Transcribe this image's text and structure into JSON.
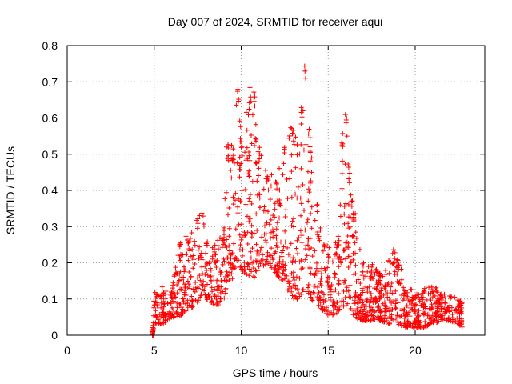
{
  "chart_data": {
    "type": "scatter",
    "title": "Day 007 of 2024, SRMTID for receiver aqui",
    "xlabel": "GPS time / hours",
    "ylabel": "SRMTID / TECUs",
    "xlim": [
      0,
      24
    ],
    "ylim": [
      0,
      0.8
    ],
    "x_ticks": [
      0,
      5,
      10,
      15,
      20
    ],
    "x_tick_labels": [
      "0",
      "5",
      "10",
      "15",
      "20"
    ],
    "y_ticks": [
      0,
      0.1,
      0.2,
      0.3,
      0.4,
      0.5,
      0.6,
      0.7,
      0.8
    ],
    "y_tick_labels": [
      "0",
      "0.1",
      "0.2",
      "0.3",
      "0.4",
      "0.5",
      "0.6",
      "0.7",
      "0.8"
    ],
    "grid": true,
    "marker": "+",
    "series": [
      {
        "name": "SRMTID",
        "color": "#ff0000",
        "envelope": {
          "x": [
            4.9,
            5.0,
            5.5,
            6.0,
            6.5,
            7.0,
            7.5,
            7.8,
            8.0,
            8.5,
            9.0,
            9.2,
            9.5,
            9.8,
            10.0,
            10.5,
            10.8,
            11.0,
            11.5,
            12.0,
            12.5,
            12.8,
            13.0,
            13.5,
            13.7,
            14.0,
            14.5,
            15.0,
            15.5,
            15.8,
            16.0,
            16.2,
            16.5,
            17.0,
            17.5,
            18.0,
            18.5,
            18.8,
            19.0,
            19.5,
            20.0,
            20.5,
            21.0,
            21.5,
            22.0,
            22.5,
            22.7
          ],
          "low": [
            0.0,
            0.03,
            0.03,
            0.05,
            0.05,
            0.07,
            0.09,
            0.12,
            0.1,
            0.08,
            0.08,
            0.15,
            0.15,
            0.2,
            0.18,
            0.16,
            0.16,
            0.18,
            0.2,
            0.17,
            0.14,
            0.11,
            0.1,
            0.1,
            0.12,
            0.1,
            0.08,
            0.05,
            0.06,
            0.08,
            0.08,
            0.08,
            0.05,
            0.04,
            0.04,
            0.04,
            0.03,
            0.04,
            0.03,
            0.02,
            0.02,
            0.02,
            0.03,
            0.04,
            0.04,
            0.03,
            0.02
          ],
          "high": [
            0.0,
            0.12,
            0.14,
            0.12,
            0.27,
            0.28,
            0.33,
            0.34,
            0.26,
            0.25,
            0.3,
            0.54,
            0.53,
            0.68,
            0.57,
            0.69,
            0.68,
            0.52,
            0.45,
            0.44,
            0.52,
            0.59,
            0.58,
            0.63,
            0.76,
            0.53,
            0.3,
            0.25,
            0.26,
            0.55,
            0.62,
            0.48,
            0.35,
            0.2,
            0.2,
            0.17,
            0.21,
            0.24,
            0.22,
            0.13,
            0.13,
            0.13,
            0.14,
            0.12,
            0.11,
            0.1,
            0.1
          ]
        }
      }
    ]
  }
}
